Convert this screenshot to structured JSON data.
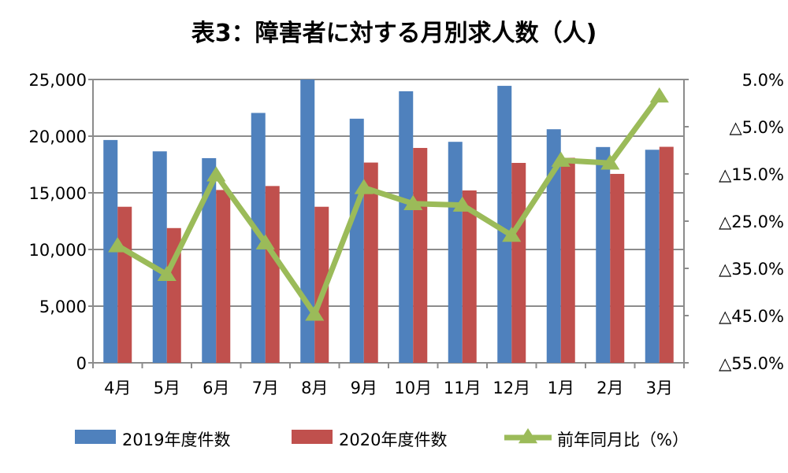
{
  "chart_data": {
    "type": "bar",
    "title": "表3：障害者に対する月別求人数（人)",
    "categories": [
      "4月",
      "5月",
      "6月",
      "7月",
      "8月",
      "9月",
      "10月",
      "11月",
      "12月",
      "1月",
      "2月",
      "3月"
    ],
    "series": [
      {
        "name": "2019年度件数",
        "type": "bar",
        "axis": "left",
        "color": "#4F81BD",
        "values": [
          19660,
          18660,
          18060,
          22050,
          25000,
          21540,
          23960,
          19500,
          24440,
          20610,
          19040,
          18800
        ]
      },
      {
        "name": "2020年度件数",
        "type": "bar",
        "axis": "left",
        "color": "#C0504D",
        "values": [
          13770,
          11890,
          15250,
          15600,
          13770,
          17670,
          18960,
          15210,
          17640,
          18090,
          16670,
          19060
        ]
      },
      {
        "name": "前年同月比（%）",
        "type": "line",
        "axis": "right",
        "color": "#9BBB59",
        "marker": "triangle",
        "values": [
          -30.2,
          -36.3,
          -15.2,
          -29.6,
          -44.7,
          -17.9,
          -21.3,
          -21.6,
          -28.0,
          -12.1,
          -12.7,
          1.5
        ]
      }
    ],
    "left_axis": {
      "ylim": [
        0,
        25000
      ],
      "ticks": [
        0,
        5000,
        10000,
        15000,
        20000,
        25000
      ],
      "tick_labels": [
        "0",
        "5,000",
        "10,000",
        "15,000",
        "20,000",
        "25,000"
      ]
    },
    "right_axis": {
      "ylim": [
        -55,
        5
      ],
      "ticks": [
        5,
        -5,
        -15,
        -25,
        -35,
        -45,
        -55
      ],
      "tick_labels": [
        "5.0%",
        "△5.0%",
        "△15.0%",
        "△25.0%",
        "△35.0%",
        "△45.0%",
        "△55.0%"
      ]
    },
    "grid": true,
    "legend_position": "bottom"
  }
}
